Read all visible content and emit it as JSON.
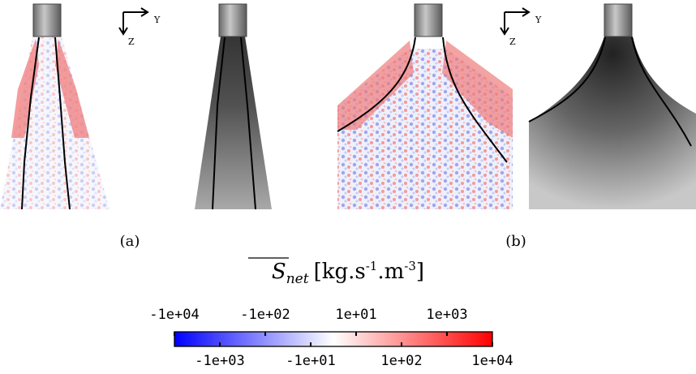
{
  "figure": {
    "axes_labels": [
      {
        "y": "Y",
        "z": "Z"
      },
      {
        "y": "Y",
        "z": "Z"
      }
    ],
    "panel_labels": [
      "(a)",
      "(b)"
    ],
    "colorbar": {
      "label": {
        "symbol": "S",
        "subscript": "net",
        "unit_before": "[kg.s",
        "exp1": "-1",
        "unit_mid": ".m",
        "exp2": "-3",
        "unit_after": "]"
      },
      "scale": "symlog",
      "colors": [
        "#0000ff",
        "#ffffff",
        "#ff0000"
      ],
      "clim": [
        {
          "value": -10000,
          "label": "-1e+04"
        },
        {
          "value": 10000,
          "label": "1e+04"
        }
      ],
      "ticks": [
        {
          "value": -10000,
          "label": "-1e+04"
        },
        {
          "value": -1000,
          "label": "-1e+03"
        },
        {
          "value": -100,
          "label": "-1e+02"
        },
        {
          "value": -10,
          "label": "-1e+01"
        },
        {
          "value": 10,
          "label": "1e+01"
        },
        {
          "value": 100,
          "label": "1e+02"
        },
        {
          "value": 1000,
          "label": "1e+03"
        },
        {
          "value": 10000,
          "label": "1e+04"
        }
      ]
    }
  }
}
